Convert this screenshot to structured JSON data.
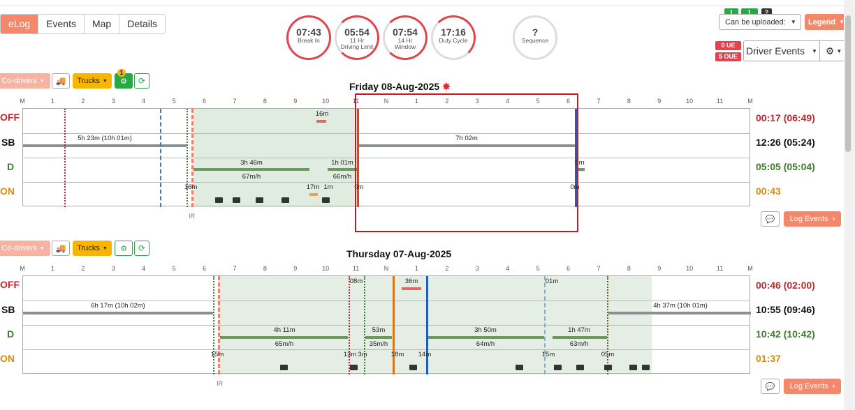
{
  "tabs": [
    "eLog",
    "Events",
    "Map",
    "Details"
  ],
  "dials": [
    {
      "value": "07:43",
      "label1": "Break In",
      "label2": ""
    },
    {
      "value": "05:54",
      "label1": "11 Hr",
      "label2": "Driving Limit"
    },
    {
      "value": "07:54",
      "label1": "14 Hr",
      "label2": "Window"
    },
    {
      "value": "17:16",
      "label1": "Duty Cycle",
      "label2": ""
    },
    {
      "value": "?",
      "label1": "Sequence",
      "label2": ""
    }
  ],
  "top_right": {
    "badge1": "1",
    "badge2": "1",
    "badge3": "?",
    "upload_select": "Can be uploaded:",
    "legend": "Legend",
    "ue": "0 UE",
    "oue": "5 OUE",
    "driver_events": "Driver Events"
  },
  "controls": {
    "codrivers": "Co-drivers",
    "trucks": "Trucks",
    "notif_count": "1",
    "log_events": "Log Events"
  },
  "status_labels": [
    "OFF",
    "SB",
    "D",
    "ON"
  ],
  "status_colors": {
    "OFF": "#c0272d",
    "SB": "#111111",
    "D": "#3c7a2e",
    "ON": "#d98a17"
  },
  "axis_labels": [
    "M",
    "1",
    "2",
    "3",
    "4",
    "5",
    "6",
    "7",
    "8",
    "9",
    "10",
    "11",
    "N",
    "1",
    "2",
    "3",
    "4",
    "5",
    "6",
    "7",
    "8",
    "9",
    "10",
    "11",
    "M"
  ],
  "days": [
    {
      "title": "Friday 08-Aug-2025",
      "totals": [
        "00:17 (06:49)",
        "12:26 (05:24)",
        "05:05 (05:04)",
        "00:43"
      ],
      "labels": [
        "16m",
        "5h 23m (10h 01m)",
        "7h 02m",
        "3h 46m",
        "67m/h",
        "1h 01m",
        "66m/h",
        "5m",
        "16m",
        "17m",
        "1m",
        "0m",
        "0m"
      ],
      "ir": "IR"
    },
    {
      "title": "Thursday 07-Aug-2025",
      "totals": [
        "00:46 (02:00)",
        "10:55 (09:46)",
        "10:42 (10:42)",
        "01:37"
      ],
      "labels": [
        "08m",
        "36m",
        "01m",
        "6h 17m (10h 02m)",
        "4h 37m (10h 01m)",
        "4h 11m",
        "65m/h",
        "53m",
        "35m/h",
        "3h 50m",
        "64m/h",
        "1h 47m",
        "63m/h",
        "15m",
        "13m",
        "3m",
        "18m",
        "14m",
        "15m",
        "05m"
      ],
      "ir": "IR"
    }
  ]
}
